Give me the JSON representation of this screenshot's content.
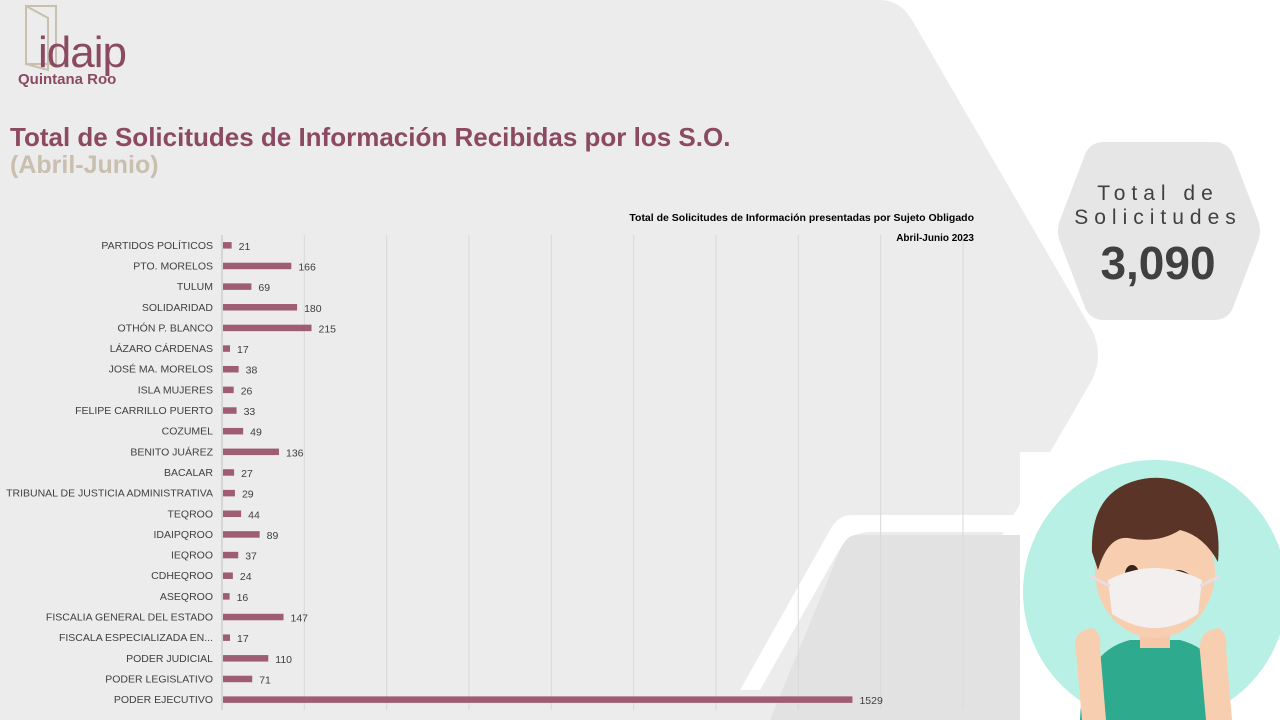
{
  "logo": {
    "word": "idaip",
    "sub": "Quintana Roo"
  },
  "page_title": "Total de Solicitudes de Información Recibidas por los S.O.",
  "page_subtitle": "(Abril-Junio)",
  "total": {
    "label_line1": "Total de",
    "label_line2": "Solicitudes",
    "value": "3,090"
  },
  "colors": {
    "accent": "#8b4a61",
    "bar": "#9e5d72",
    "muted": "#c9bfae",
    "text": "#404040",
    "panel": "#ececec"
  },
  "chart_data": {
    "type": "bar",
    "orientation": "horizontal",
    "title": "Total de Solicitudes de Información presentadas por Sujeto Obligado",
    "subtitle": "Abril-Junio 2023",
    "categories": [
      "PARTIDOS POLÍTICOS",
      "PTO. MORELOS",
      "TULUM",
      "SOLIDARIDAD",
      "OTHÓN P. BLANCO",
      "LÁZARO CÁRDENAS",
      "JOSÉ MA. MORELOS",
      "ISLA MUJERES",
      "FELIPE CARRILLO PUERTO",
      "COZUMEL",
      "BENITO JUÁREZ",
      "BACALAR",
      "TRIBUNAL DE JUSTICIA ADMINISTRATIVA",
      "TEQROO",
      "IDAIPQROO",
      "IEQROO",
      "CDHEQROO",
      "ASEQROO",
      "FISCALIA GENERAL DEL ESTADO",
      "FISCALA ESPECIALIZADA EN...",
      "PODER JUDICIAL",
      "PODER LEGISLATIVO",
      "PODER EJECUTIVO"
    ],
    "values": [
      21,
      166,
      69,
      180,
      215,
      17,
      38,
      26,
      33,
      49,
      136,
      27,
      29,
      44,
      89,
      37,
      24,
      16,
      147,
      17,
      110,
      71,
      1529
    ],
    "xlim": [
      0,
      1800
    ],
    "grid": true,
    "xlabel": "",
    "ylabel": ""
  }
}
